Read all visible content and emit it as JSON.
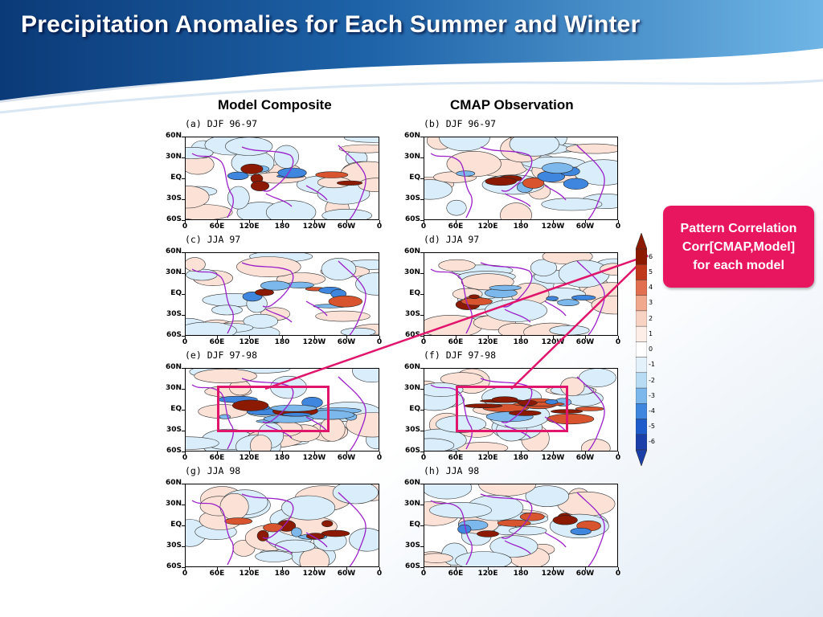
{
  "slide": {
    "title": "Precipitation Anomalies for Each Summer and Winter",
    "columns": [
      "Model Composite",
      "CMAP Observation"
    ],
    "callout": [
      "Pattern Correlation",
      "Corr[CMAP,Model]",
      "for each model"
    ]
  },
  "axes": {
    "lat_labels": [
      "60N",
      "30N",
      "EQ",
      "30S",
      "60S"
    ],
    "lon_labels": [
      "0",
      "60E",
      "120E",
      "180",
      "120W",
      "60W",
      "0"
    ]
  },
  "panels": [
    {
      "label": "(a) DJF 96-97",
      "source": "model",
      "season": "DJF 96-97"
    },
    {
      "label": "(b) DJF 96-97",
      "source": "cmap",
      "season": "DJF 96-97"
    },
    {
      "label": "(c) JJA 97",
      "source": "model",
      "season": "JJA 97"
    },
    {
      "label": "(d) JJA 97",
      "source": "cmap",
      "season": "JJA 97"
    },
    {
      "label": "(e) DJF 97-98",
      "source": "model",
      "season": "DJF 97-98",
      "highlighted": true
    },
    {
      "label": "(f) DJF 97-98",
      "source": "cmap",
      "season": "DJF 97-98",
      "highlighted": true
    },
    {
      "label": "(g) JJA 98",
      "source": "model",
      "season": "JJA 98"
    },
    {
      "label": "(h) JJA 98",
      "source": "cmap",
      "season": "JJA 98"
    }
  ],
  "colorbar": {
    "labels": [
      "6",
      "5",
      "4",
      "3",
      "2",
      "1",
      "0",
      "-1",
      "-2",
      "-3",
      "-4",
      "-5",
      "-6"
    ],
    "colors": [
      "#8b1a00",
      "#c0391b",
      "#e0704f",
      "#f0a98c",
      "#f8d3c3",
      "#fdeee7",
      "#ffffff",
      "#e3f1fb",
      "#b9dcf5",
      "#7db8ec",
      "#3f86de",
      "#1e5ccb",
      "#1b3fa8"
    ]
  },
  "colors": {
    "accent": "#e0156c",
    "coast": "#9b1fc9",
    "positive": "#e0704f",
    "negative": "#3f86de"
  }
}
